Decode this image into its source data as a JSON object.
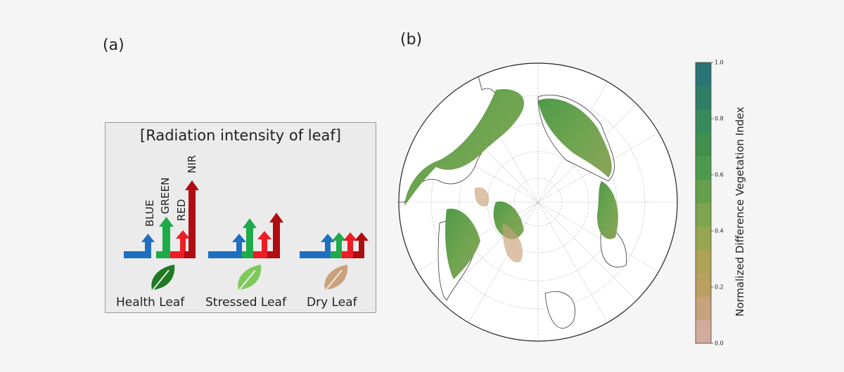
{
  "panels": {
    "a_label": "(a)",
    "b_label": "(b)"
  },
  "radiation": {
    "title": "[Radiation intensity of leaf]",
    "bands": {
      "blue": "BLUE",
      "green": "GREEN",
      "red": "RED",
      "nir": "NIR"
    },
    "colors": {
      "blue": "#1f6fc0",
      "green": "#1faa4a",
      "red": "#ee1c24",
      "nir": "#b00d12"
    },
    "leaves": [
      {
        "name": "Health Leaf",
        "color": "#1e7a22"
      },
      {
        "name": "Stressed Leaf",
        "color": "#7ec95a"
      },
      {
        "name": "Dry Leaf",
        "color": "#c9a27b"
      }
    ]
  },
  "map": {
    "projection": "north-polar-stereographic",
    "land_fill": "#ffffff",
    "vegetation_color": "#5a9a48"
  },
  "colorbar": {
    "label": "Normalized Difference Vegetation Index",
    "ticks": [
      "1.0",
      "0.8",
      "0.6",
      "0.4",
      "0.2",
      "0.0"
    ],
    "range": [
      0.0,
      1.0
    ],
    "colors": [
      "#d3ab9c",
      "#c6a37a",
      "#baa060",
      "#aca454",
      "#97a650",
      "#7fa44e",
      "#64a04c",
      "#4e9a4c",
      "#40914e",
      "#378a5c",
      "#2f7f68",
      "#2a7475"
    ]
  }
}
